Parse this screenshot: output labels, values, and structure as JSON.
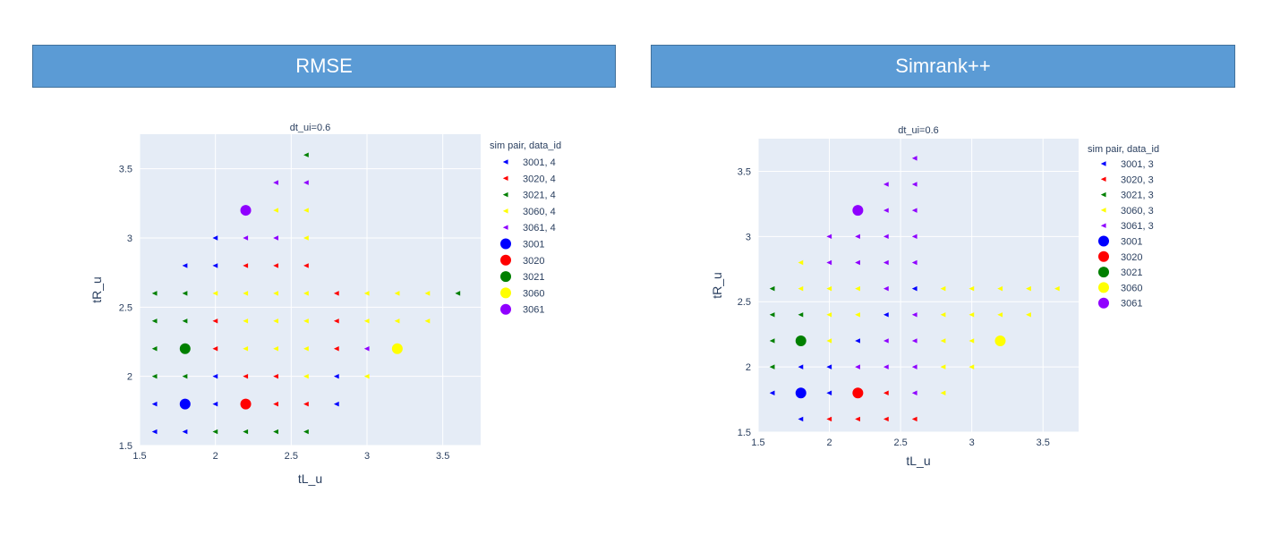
{
  "headers": {
    "left": "RMSE",
    "right": "Simrank++"
  },
  "colors": {
    "3001": "#0000ff",
    "3020": "#ff0000",
    "3021": "#008000",
    "3060": "#ffff00",
    "3061": "#8f00ff",
    "plot_bg": "#e5ecf6",
    "grid": "#ffffff"
  },
  "chart_data": [
    {
      "type": "scatter",
      "title": "dt_ui=0.6",
      "xlabel": "tL_u",
      "ylabel": "tR_u",
      "xlim": [
        1.5,
        3.75
      ],
      "ylim": [
        1.5,
        3.75
      ],
      "xticks": [
        "1.5",
        "2",
        "2.5",
        "3",
        "3.5"
      ],
      "yticks": [
        "1.5",
        "2",
        "2.5",
        "3",
        "3.5"
      ],
      "legend_title": "sim pair, data_id",
      "legend_position": "right",
      "series": [
        {
          "name": "3001, 4",
          "key": "3001",
          "marker": "triangle-left",
          "points": [
            [
              1.6,
              1.6
            ],
            [
              1.8,
              1.6
            ],
            [
              1.6,
              1.8
            ],
            [
              2.0,
              1.8
            ],
            [
              2.0,
              2.0
            ],
            [
              2.8,
              2.0
            ],
            [
              2.8,
              1.8
            ],
            [
              1.8,
              2.8
            ],
            [
              2.0,
              2.8
            ],
            [
              2.0,
              3.0
            ]
          ]
        },
        {
          "name": "3020, 4",
          "key": "3020",
          "marker": "triangle-left",
          "points": [
            [
              2.2,
              2.0
            ],
            [
              2.4,
              2.0
            ],
            [
              2.4,
              1.8
            ],
            [
              2.6,
              1.8
            ],
            [
              2.0,
              2.2
            ],
            [
              2.8,
              2.2
            ],
            [
              2.0,
              2.4
            ],
            [
              2.8,
              2.4
            ],
            [
              2.2,
              2.8
            ],
            [
              2.4,
              2.8
            ],
            [
              2.6,
              2.8
            ],
            [
              2.8,
              2.6
            ]
          ]
        },
        {
          "name": "3021, 4",
          "key": "3021",
          "marker": "triangle-left",
          "points": [
            [
              2.0,
              1.6
            ],
            [
              2.2,
              1.6
            ],
            [
              2.4,
              1.6
            ],
            [
              2.6,
              1.6
            ],
            [
              1.6,
              2.0
            ],
            [
              1.8,
              2.0
            ],
            [
              1.6,
              2.2
            ],
            [
              1.6,
              2.4
            ],
            [
              1.8,
              2.4
            ],
            [
              1.6,
              2.6
            ],
            [
              1.8,
              2.6
            ],
            [
              3.6,
              2.6
            ],
            [
              2.6,
              3.6
            ]
          ]
        },
        {
          "name": "3060, 4",
          "key": "3060",
          "marker": "triangle-left",
          "points": [
            [
              2.6,
              2.0
            ],
            [
              3.0,
              2.0
            ],
            [
              2.2,
              2.2
            ],
            [
              2.4,
              2.2
            ],
            [
              2.6,
              2.2
            ],
            [
              2.2,
              2.4
            ],
            [
              2.4,
              2.4
            ],
            [
              2.6,
              2.4
            ],
            [
              3.0,
              2.4
            ],
            [
              3.2,
              2.4
            ],
            [
              3.4,
              2.4
            ],
            [
              2.0,
              2.6
            ],
            [
              2.2,
              2.6
            ],
            [
              2.4,
              2.6
            ],
            [
              2.6,
              2.6
            ],
            [
              3.0,
              2.6
            ],
            [
              3.2,
              2.6
            ],
            [
              3.4,
              2.6
            ],
            [
              2.6,
              3.0
            ],
            [
              2.4,
              3.2
            ],
            [
              2.6,
              3.2
            ]
          ]
        },
        {
          "name": "3061, 4",
          "key": "3061",
          "marker": "triangle-left",
          "points": [
            [
              3.0,
              2.2
            ],
            [
              2.2,
              3.0
            ],
            [
              2.4,
              3.0
            ],
            [
              2.4,
              3.4
            ],
            [
              2.6,
              3.4
            ]
          ]
        },
        {
          "name": "3001",
          "key": "3001",
          "marker": "circle",
          "points": [
            [
              1.8,
              1.8
            ]
          ]
        },
        {
          "name": "3020",
          "key": "3020",
          "marker": "circle",
          "points": [
            [
              2.2,
              1.8
            ]
          ]
        },
        {
          "name": "3021",
          "key": "3021",
          "marker": "circle",
          "points": [
            [
              1.8,
              2.2
            ]
          ]
        },
        {
          "name": "3060",
          "key": "3060",
          "marker": "circle",
          "points": [
            [
              3.2,
              2.2
            ]
          ]
        },
        {
          "name": "3061",
          "key": "3061",
          "marker": "circle",
          "points": [
            [
              2.2,
              3.2
            ]
          ]
        }
      ]
    },
    {
      "type": "scatter",
      "title": "dt_ui=0.6",
      "xlabel": "tL_u",
      "ylabel": "tR_u",
      "xlim": [
        1.5,
        3.75
      ],
      "ylim": [
        1.5,
        3.75
      ],
      "xticks": [
        "1.5",
        "2",
        "2.5",
        "3",
        "3.5"
      ],
      "yticks": [
        "1.5",
        "2",
        "2.5",
        "3",
        "3.5"
      ],
      "legend_title": "sim pair, data_id",
      "legend_position": "right",
      "series": [
        {
          "name": "3001, 3",
          "key": "3001",
          "marker": "triangle-left",
          "points": [
            [
              1.8,
              1.6
            ],
            [
              1.6,
              1.8
            ],
            [
              2.0,
              1.8
            ],
            [
              1.8,
              2.0
            ],
            [
              2.0,
              2.0
            ],
            [
              2.2,
              2.2
            ],
            [
              2.4,
              2.4
            ],
            [
              2.6,
              2.6
            ]
          ]
        },
        {
          "name": "3020, 3",
          "key": "3020",
          "marker": "triangle-left",
          "points": [
            [
              2.0,
              1.6
            ],
            [
              2.2,
              1.6
            ],
            [
              2.4,
              1.6
            ],
            [
              2.6,
              1.6
            ],
            [
              2.4,
              1.8
            ]
          ]
        },
        {
          "name": "3021, 3",
          "key": "3021",
          "marker": "triangle-left",
          "points": [
            [
              1.6,
              2.0
            ],
            [
              1.6,
              2.2
            ],
            [
              1.6,
              2.4
            ],
            [
              1.8,
              2.4
            ],
            [
              1.6,
              2.6
            ]
          ]
        },
        {
          "name": "3060, 3",
          "key": "3060",
          "marker": "triangle-left",
          "points": [
            [
              2.8,
              1.8
            ],
            [
              2.8,
              2.0
            ],
            [
              3.0,
              2.0
            ],
            [
              2.0,
              2.2
            ],
            [
              2.8,
              2.2
            ],
            [
              3.0,
              2.2
            ],
            [
              2.0,
              2.4
            ],
            [
              2.2,
              2.4
            ],
            [
              2.8,
              2.4
            ],
            [
              3.0,
              2.4
            ],
            [
              3.2,
              2.4
            ],
            [
              3.4,
              2.4
            ],
            [
              1.8,
              2.6
            ],
            [
              2.0,
              2.6
            ],
            [
              2.2,
              2.6
            ],
            [
              2.8,
              2.6
            ],
            [
              3.0,
              2.6
            ],
            [
              3.2,
              2.6
            ],
            [
              3.4,
              2.6
            ],
            [
              3.6,
              2.6
            ],
            [
              1.8,
              2.8
            ]
          ]
        },
        {
          "name": "3061, 3",
          "key": "3061",
          "marker": "triangle-left",
          "points": [
            [
              2.2,
              2.0
            ],
            [
              2.4,
              2.0
            ],
            [
              2.6,
              2.0
            ],
            [
              2.6,
              1.8
            ],
            [
              2.4,
              2.2
            ],
            [
              2.6,
              2.2
            ],
            [
              2.6,
              2.4
            ],
            [
              2.4,
              2.6
            ],
            [
              2.0,
              2.8
            ],
            [
              2.2,
              2.8
            ],
            [
              2.4,
              2.8
            ],
            [
              2.6,
              2.8
            ],
            [
              2.0,
              3.0
            ],
            [
              2.2,
              3.0
            ],
            [
              2.4,
              3.0
            ],
            [
              2.6,
              3.0
            ],
            [
              2.4,
              3.2
            ],
            [
              2.6,
              3.2
            ],
            [
              2.4,
              3.4
            ],
            [
              2.6,
              3.4
            ],
            [
              2.6,
              3.6
            ]
          ]
        },
        {
          "name": "3001",
          "key": "3001",
          "marker": "circle",
          "points": [
            [
              1.8,
              1.8
            ]
          ]
        },
        {
          "name": "3020",
          "key": "3020",
          "marker": "circle",
          "points": [
            [
              2.2,
              1.8
            ]
          ]
        },
        {
          "name": "3021",
          "key": "3021",
          "marker": "circle",
          "points": [
            [
              1.8,
              2.2
            ]
          ]
        },
        {
          "name": "3060",
          "key": "3060",
          "marker": "circle",
          "points": [
            [
              3.2,
              2.2
            ]
          ]
        },
        {
          "name": "3061",
          "key": "3061",
          "marker": "circle",
          "points": [
            [
              2.2,
              3.2
            ]
          ]
        }
      ]
    }
  ]
}
